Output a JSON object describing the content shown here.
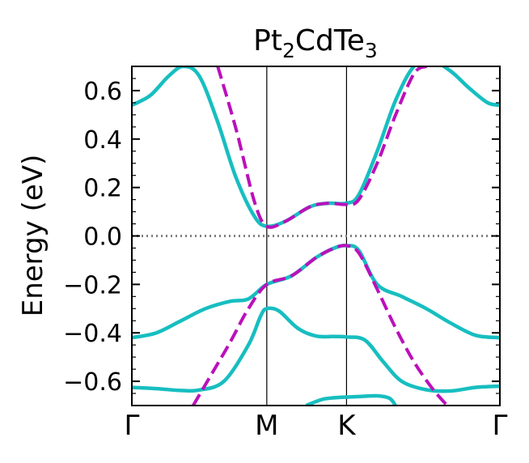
{
  "chart_data": {
    "type": "line",
    "title": {
      "base": "Pt",
      "sub1": "2",
      "mid": "CdTe",
      "sub2": "3"
    },
    "ylabel": "Energy (eV)",
    "xlabel": "",
    "ylim": [
      -0.7,
      0.7
    ],
    "xlim": [
      0,
      3
    ],
    "kpath": {
      "positions": [
        0,
        1.1,
        1.75,
        3.0
      ],
      "labels": [
        "Γ",
        "M",
        "K",
        "Γ"
      ]
    },
    "yticks": [
      {
        "value": 0.6,
        "label": "0.6"
      },
      {
        "value": 0.4,
        "label": "0.4"
      },
      {
        "value": 0.2,
        "label": "0.2"
      },
      {
        "value": 0.0,
        "label": "0.0"
      },
      {
        "value": -0.2,
        "label": "−0.2"
      },
      {
        "value": -0.4,
        "label": "−0.4"
      },
      {
        "value": -0.6,
        "label": "−0.6"
      }
    ],
    "fermi_level": 0.0,
    "colors": {
      "bands": "#17bec0",
      "fit": "#bb10bb",
      "fermi": "#808080",
      "axis": "#000000"
    },
    "series": [
      {
        "name": "band-upper-conduction",
        "style": "solid",
        "x": [
          0,
          0.15,
          0.3,
          0.42,
          0.55,
          0.7,
          0.85,
          1.0,
          1.1,
          1.25,
          1.45,
          1.6,
          1.75,
          1.85,
          2.0,
          2.15,
          2.3,
          2.45,
          2.6,
          2.75,
          2.9,
          3.0
        ],
        "y": [
          0.54,
          0.58,
          0.66,
          0.7,
          0.66,
          0.47,
          0.24,
          0.08,
          0.04,
          0.06,
          0.12,
          0.135,
          0.135,
          0.17,
          0.35,
          0.56,
          0.7,
          0.72,
          0.68,
          0.61,
          0.55,
          0.54
        ]
      },
      {
        "name": "band-valence-top",
        "style": "solid",
        "x": [
          0,
          0.2,
          0.4,
          0.6,
          0.8,
          0.95,
          1.1,
          1.3,
          1.5,
          1.65,
          1.75,
          1.85,
          2.0,
          2.2,
          2.4,
          2.6,
          2.8,
          3.0
        ],
        "y": [
          -0.42,
          -0.4,
          -0.35,
          -0.3,
          -0.27,
          -0.26,
          -0.2,
          -0.165,
          -0.09,
          -0.05,
          -0.04,
          -0.06,
          -0.2,
          -0.25,
          -0.3,
          -0.36,
          -0.41,
          -0.42
        ]
      },
      {
        "name": "band-middle",
        "style": "solid",
        "x": [
          0,
          0.2,
          0.4,
          0.55,
          0.75,
          0.95,
          1.05,
          1.1,
          1.2,
          1.35,
          1.5,
          1.65,
          1.75,
          1.9,
          2.05,
          2.2,
          2.4,
          2.6,
          2.8,
          3.0
        ],
        "y": [
          -0.625,
          -0.63,
          -0.638,
          -0.636,
          -0.6,
          -0.45,
          -0.33,
          -0.3,
          -0.31,
          -0.38,
          -0.413,
          -0.415,
          -0.417,
          -0.43,
          -0.52,
          -0.6,
          -0.635,
          -0.64,
          -0.625,
          -0.62
        ]
      },
      {
        "name": "band-lower",
        "style": "solid",
        "x": [
          1.42,
          1.55,
          1.65,
          1.75,
          1.85,
          2.0,
          2.1,
          2.15
        ],
        "y": [
          -0.7,
          -0.675,
          -0.668,
          -0.665,
          -0.663,
          -0.66,
          -0.67,
          -0.7
        ]
      },
      {
        "name": "fit-upper",
        "style": "dashed",
        "x": [
          0.7,
          0.85,
          1.0,
          1.1,
          1.25,
          1.45,
          1.6,
          1.75,
          1.85,
          2.0,
          2.15,
          2.3,
          2.4
        ],
        "y": [
          0.7,
          0.44,
          0.14,
          0.04,
          0.06,
          0.12,
          0.135,
          0.13,
          0.15,
          0.3,
          0.5,
          0.67,
          0.7
        ]
      },
      {
        "name": "fit-lower",
        "style": "dashed",
        "x": [
          0.5,
          0.65,
          0.8,
          0.95,
          1.1,
          1.3,
          1.5,
          1.65,
          1.75,
          1.85,
          2.0,
          2.15,
          2.3,
          2.45,
          2.57
        ],
        "y": [
          -0.7,
          -0.57,
          -0.44,
          -0.3,
          -0.2,
          -0.165,
          -0.09,
          -0.05,
          -0.04,
          -0.07,
          -0.22,
          -0.38,
          -0.52,
          -0.63,
          -0.7
        ]
      }
    ]
  }
}
